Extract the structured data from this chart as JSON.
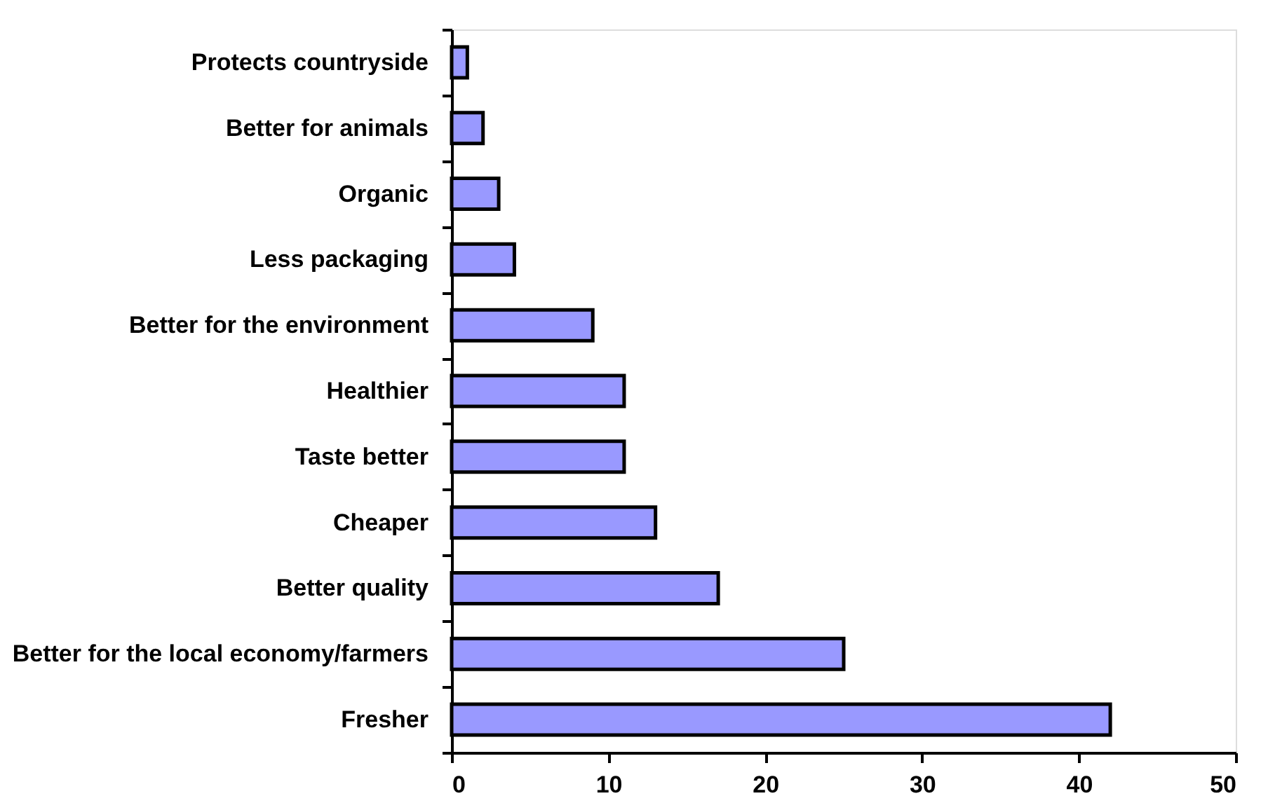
{
  "chart_data": {
    "type": "bar",
    "orientation": "horizontal",
    "categories": [
      "Protects countryside",
      "Better for animals",
      "Organic",
      "Less packaging",
      "Better for the environment",
      "Healthier",
      "Taste better",
      "Cheaper",
      "Better quality",
      "Better for the local economy/farmers",
      "Fresher"
    ],
    "values": [
      1,
      2,
      3,
      4,
      9,
      11,
      11,
      13,
      17,
      25,
      42
    ],
    "color": "#9999ff",
    "xlim": [
      0,
      50
    ],
    "xticks": [
      0,
      10,
      20,
      30,
      40,
      50
    ],
    "grid": false
  }
}
